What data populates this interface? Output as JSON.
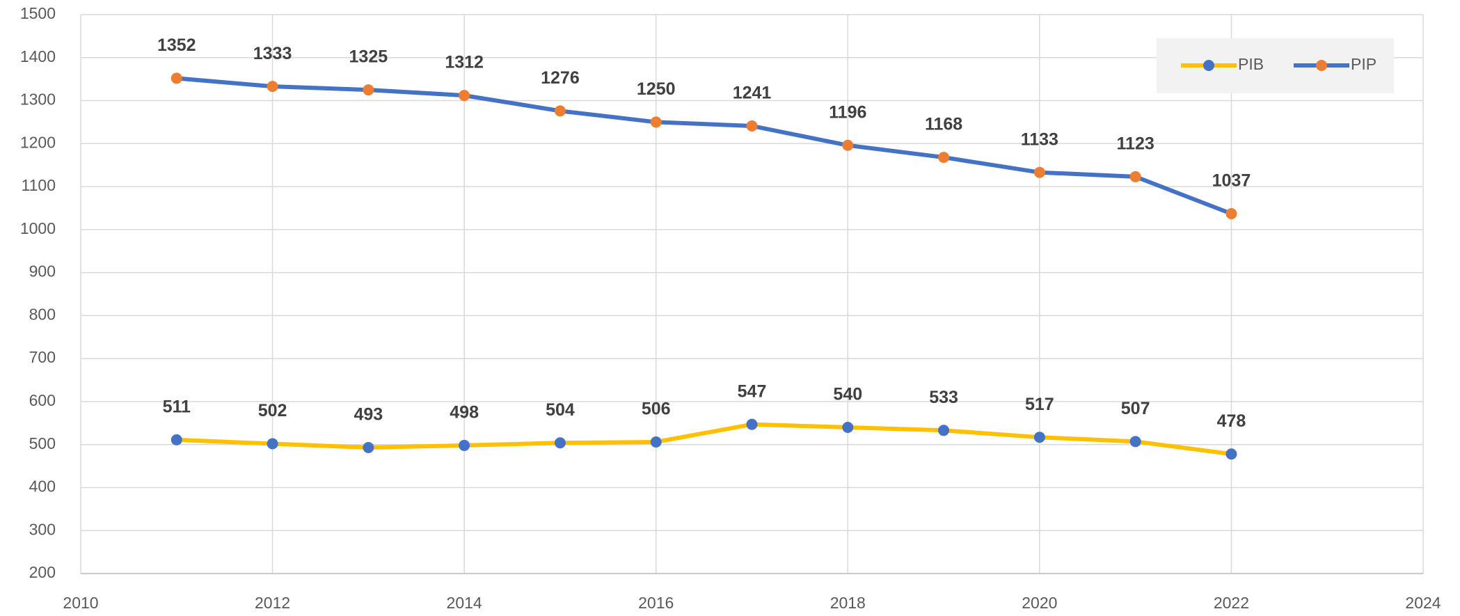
{
  "chart_data": {
    "type": "line",
    "x": [
      2011,
      2012,
      2013,
      2014,
      2015,
      2016,
      2017,
      2018,
      2019,
      2020,
      2021,
      2022
    ],
    "series": [
      {
        "name": "PIB",
        "color": "#FFC000",
        "marker_color": "#4472C4",
        "values": [
          511,
          502,
          493,
          498,
          504,
          506,
          547,
          540,
          533,
          517,
          507,
          478
        ]
      },
      {
        "name": "PIP",
        "color": "#4472C4",
        "marker_color": "#ED7D31",
        "values": [
          1352,
          1333,
          1325,
          1312,
          1276,
          1250,
          1241,
          1196,
          1168,
          1133,
          1123,
          1037
        ]
      }
    ],
    "xlim": [
      2010,
      2024
    ],
    "xticks": [
      2010,
      2012,
      2014,
      2016,
      2018,
      2020,
      2022,
      2024
    ],
    "ylim": [
      200,
      1500
    ],
    "yticks": [
      200,
      300,
      400,
      500,
      600,
      700,
      800,
      900,
      1000,
      1100,
      1200,
      1300,
      1400,
      1500
    ],
    "grid": true,
    "legend": "upper right"
  }
}
